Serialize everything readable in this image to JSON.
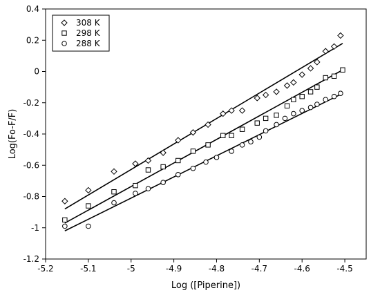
{
  "chart_data": {
    "type": "scatter",
    "xlabel": "Log ([Piperine])",
    "ylabel": "Log(Fo-F/F)",
    "xlim": [
      -5.2,
      -4.45
    ],
    "ylim": [
      -1.2,
      0.4
    ],
    "xticks": [
      -5.2,
      -5.1,
      -5.0,
      -4.9,
      -4.8,
      -4.7,
      -4.6,
      -4.5
    ],
    "xtick_labels": [
      "-5.2",
      "-5.1",
      "-5",
      "-4.9",
      "-4.8",
      "-4.7",
      "-4.6",
      "-4.5"
    ],
    "yticks": [
      -1.2,
      -1.0,
      -0.8,
      -0.6,
      -0.4,
      -0.2,
      0.0,
      0.2,
      0.4
    ],
    "ytick_labels": [
      "-1.2",
      "-1",
      "-0.8",
      "-0.6",
      "-0.4",
      "-0.2",
      "0",
      "0.2",
      "0.4"
    ],
    "grid": false,
    "legend_position": "top-left",
    "series": [
      {
        "name": "308 K",
        "marker": "diamond",
        "x": [
          -5.155,
          -5.1,
          -5.04,
          -4.99,
          -4.96,
          -4.925,
          -4.89,
          -4.855,
          -4.82,
          -4.785,
          -4.765,
          -4.74,
          -4.705,
          -4.685,
          -4.66,
          -4.635,
          -4.62,
          -4.6,
          -4.58,
          -4.565,
          -4.545,
          -4.525,
          -4.51
        ],
        "y": [
          -0.83,
          -0.76,
          -0.64,
          -0.59,
          -0.57,
          -0.52,
          -0.44,
          -0.39,
          -0.34,
          -0.27,
          -0.25,
          -0.25,
          -0.17,
          -0.15,
          -0.13,
          -0.09,
          -0.07,
          -0.02,
          0.02,
          0.06,
          0.13,
          0.16,
          0.23
        ],
        "fit": [
          [
            -5.155,
            -0.88
          ],
          [
            -4.505,
            0.18
          ]
        ]
      },
      {
        "name": "298 K",
        "marker": "square",
        "x": [
          -5.155,
          -5.1,
          -5.04,
          -4.99,
          -4.96,
          -4.925,
          -4.89,
          -4.855,
          -4.82,
          -4.785,
          -4.765,
          -4.74,
          -4.705,
          -4.685,
          -4.66,
          -4.635,
          -4.62,
          -4.6,
          -4.58,
          -4.565,
          -4.545,
          -4.525,
          -4.505
        ],
        "y": [
          -0.95,
          -0.86,
          -0.77,
          -0.73,
          -0.63,
          -0.61,
          -0.57,
          -0.51,
          -0.47,
          -0.41,
          -0.41,
          -0.37,
          -0.33,
          -0.3,
          -0.28,
          -0.22,
          -0.18,
          -0.16,
          -0.13,
          -0.1,
          -0.04,
          -0.03,
          0.01
        ],
        "fit": [
          [
            -5.155,
            -0.97
          ],
          [
            -4.505,
            0.01
          ]
        ]
      },
      {
        "name": "288 K",
        "marker": "circle",
        "x": [
          -5.155,
          -5.1,
          -5.04,
          -4.99,
          -4.96,
          -4.925,
          -4.89,
          -4.855,
          -4.825,
          -4.8,
          -4.765,
          -4.74,
          -4.72,
          -4.7,
          -4.685,
          -4.66,
          -4.64,
          -4.62,
          -4.6,
          -4.58,
          -4.565,
          -4.545,
          -4.525,
          -4.51
        ],
        "y": [
          -0.99,
          -0.99,
          -0.84,
          -0.78,
          -0.75,
          -0.71,
          -0.66,
          -0.62,
          -0.58,
          -0.55,
          -0.51,
          -0.47,
          -0.45,
          -0.42,
          -0.38,
          -0.34,
          -0.3,
          -0.27,
          -0.25,
          -0.23,
          -0.21,
          -0.18,
          -0.16,
          -0.14
        ],
        "fit": [
          [
            -5.155,
            -1.02
          ],
          [
            -4.505,
            -0.14
          ]
        ]
      }
    ]
  }
}
